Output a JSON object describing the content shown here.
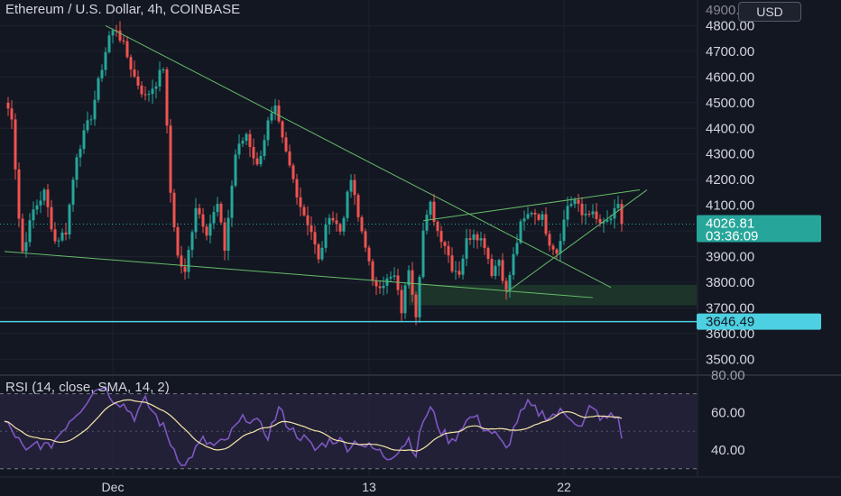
{
  "header": {
    "title": "Ethereum / U.S. Dollar, 4h, COINBASE",
    "currency_button": "USD"
  },
  "colors": {
    "background": "#131722",
    "up": "#26a69a",
    "down": "#ef5350",
    "trendline": "#66bb6a",
    "support": "#4dd0e1",
    "rsi_line": "#7e57c2",
    "rsi_ma": "#f5e6a8",
    "rsi_band": "#2a2540"
  },
  "chart_data": [
    {
      "type": "candlestick",
      "symbol": "Ethereum / U.S. Dollar, 4h, COINBASE",
      "ylim": [
        3445,
        4900
      ],
      "y_ticks": [
        3500,
        3600,
        3700,
        3800,
        3900,
        4000,
        4100,
        4200,
        4300,
        4400,
        4500,
        4600,
        4700,
        4800
      ],
      "y_tick_labels": [
        "3500.00",
        "3600.00",
        "3700.00",
        "3800.00",
        "3900.00",
        "4000.00",
        "4100.00",
        "4200.00",
        "4300.00",
        "4400.00",
        "4500.00",
        "4600.00",
        "4700.00",
        "4800.00"
      ],
      "top_partial_label": "4900.00",
      "x_labels": [
        {
          "label": "Dec",
          "bar": 30
        },
        {
          "label": "13",
          "bar": 101
        },
        {
          "label": "22",
          "bar": 155
        }
      ],
      "anchors": [
        [
          0,
          4500
        ],
        [
          2,
          4450
        ],
        [
          4,
          4050
        ],
        [
          5,
          3920
        ],
        [
          8,
          4080
        ],
        [
          11,
          4150
        ],
        [
          14,
          3960
        ],
        [
          17,
          4000
        ],
        [
          20,
          4300
        ],
        [
          24,
          4450
        ],
        [
          27,
          4640
        ],
        [
          29,
          4760
        ],
        [
          31,
          4790
        ],
        [
          33,
          4720
        ],
        [
          36,
          4600
        ],
        [
          39,
          4520
        ],
        [
          42,
          4580
        ],
        [
          44,
          4640
        ],
        [
          46,
          4150
        ],
        [
          48,
          3900
        ],
        [
          50,
          3830
        ],
        [
          53,
          4100
        ],
        [
          56,
          4000
        ],
        [
          59,
          4100
        ],
        [
          61,
          3930
        ],
        [
          64,
          4300
        ],
        [
          67,
          4380
        ],
        [
          70,
          4250
        ],
        [
          73,
          4420
        ],
        [
          75,
          4470
        ],
        [
          77,
          4350
        ],
        [
          79,
          4250
        ],
        [
          82,
          4100
        ],
        [
          85,
          4000
        ],
        [
          87,
          3880
        ],
        [
          90,
          4070
        ],
        [
          93,
          4000
        ],
        [
          96,
          4200
        ],
        [
          98,
          4050
        ],
        [
          100,
          3950
        ],
        [
          102,
          3790
        ],
        [
          105,
          3800
        ],
        [
          108,
          3820
        ],
        [
          110,
          3690
        ],
        [
          112,
          3860
        ],
        [
          114,
          3680
        ],
        [
          116,
          4000
        ],
        [
          118,
          4100
        ],
        [
          120,
          4000
        ],
        [
          122,
          3950
        ],
        [
          124,
          3860
        ],
        [
          126,
          3840
        ],
        [
          128,
          3960
        ],
        [
          130,
          4000
        ],
        [
          133,
          3950
        ],
        [
          135,
          3840
        ],
        [
          137,
          3890
        ],
        [
          139,
          3760
        ],
        [
          141,
          3900
        ],
        [
          143,
          4020
        ],
        [
          146,
          4080
        ],
        [
          149,
          4050
        ],
        [
          151,
          3960
        ],
        [
          153,
          3920
        ],
        [
          156,
          4100
        ],
        [
          158,
          4120
        ],
        [
          160,
          4060
        ],
        [
          162,
          4080
        ],
        [
          164,
          4040
        ],
        [
          166,
          4020
        ],
        [
          168,
          4050
        ],
        [
          170,
          4090
        ],
        [
          171,
          4026.81
        ]
      ],
      "support_level": 3646.49,
      "support_label": "3646.49",
      "last_price": 4026.81,
      "last_price_label": "4026.81",
      "countdown": "03:36:09",
      "support_zone": [
        3710,
        3790
      ],
      "trendlines": [
        [
          [
            28,
            4800
          ],
          [
            168,
            3780
          ]
        ],
        [
          [
            0,
            3920
          ],
          [
            163,
            3740
          ]
        ],
        [
          [
            116,
            4040
          ],
          [
            176,
            4160
          ]
        ],
        [
          [
            139,
            3760
          ],
          [
            178,
            4160
          ]
        ]
      ]
    },
    {
      "type": "line",
      "indicator": "RSI",
      "label_name": "RSI",
      "label_args": "(14, close, SMA, 14, 2)",
      "ylim": [
        26,
        79
      ],
      "y_ticks": [
        40,
        60,
        80
      ],
      "y_tick_labels": [
        "40.00",
        "60.00",
        "80.00"
      ],
      "band": [
        30,
        70
      ],
      "anchors": [
        [
          0,
          55
        ],
        [
          3,
          48
        ],
        [
          6,
          38
        ],
        [
          9,
          44
        ],
        [
          12,
          41
        ],
        [
          15,
          48
        ],
        [
          18,
          56
        ],
        [
          21,
          62
        ],
        [
          24,
          70
        ],
        [
          27,
          75
        ],
        [
          30,
          68
        ],
        [
          33,
          64
        ],
        [
          36,
          58
        ],
        [
          39,
          66
        ],
        [
          42,
          58
        ],
        [
          44,
          52
        ],
        [
          46,
          44
        ],
        [
          48,
          37
        ],
        [
          50,
          31
        ],
        [
          52,
          38
        ],
        [
          55,
          45
        ],
        [
          58,
          42
        ],
        [
          61,
          44
        ],
        [
          64,
          52
        ],
        [
          67,
          58
        ],
        [
          70,
          54
        ],
        [
          73,
          48
        ],
        [
          76,
          62
        ],
        [
          78,
          55
        ],
        [
          80,
          50
        ],
        [
          83,
          46
        ],
        [
          86,
          40
        ],
        [
          89,
          44
        ],
        [
          92,
          46
        ],
        [
          95,
          42
        ],
        [
          98,
          45
        ],
        [
          100,
          42
        ],
        [
          103,
          40
        ],
        [
          106,
          36
        ],
        [
          109,
          40
        ],
        [
          112,
          46
        ],
        [
          114,
          38
        ],
        [
          116,
          56
        ],
        [
          118,
          62
        ],
        [
          121,
          50
        ],
        [
          124,
          44
        ],
        [
          127,
          54
        ],
        [
          130,
          58
        ],
        [
          133,
          52
        ],
        [
          136,
          48
        ],
        [
          139,
          40
        ],
        [
          142,
          56
        ],
        [
          145,
          64
        ],
        [
          148,
          60
        ],
        [
          151,
          58
        ],
        [
          154,
          60
        ],
        [
          157,
          58
        ],
        [
          160,
          52
        ],
        [
          162,
          62
        ],
        [
          164,
          60
        ],
        [
          166,
          56
        ],
        [
          168,
          58
        ],
        [
          170,
          57
        ],
        [
          171,
          48
        ]
      ]
    }
  ]
}
